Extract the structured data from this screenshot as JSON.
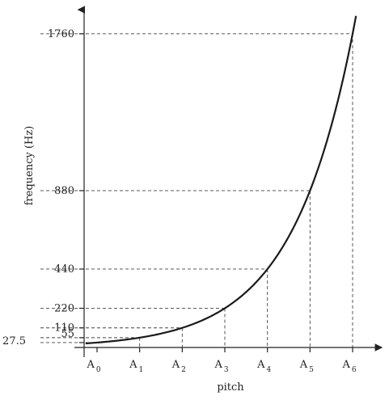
{
  "chart_data": {
    "type": "line",
    "xlabel": "pitch",
    "ylabel": "frequency (Hz)",
    "x_ticks": [
      {
        "letter": "A",
        "sub": "0",
        "index": 0
      },
      {
        "letter": "A",
        "sub": "1",
        "index": 1
      },
      {
        "letter": "A",
        "sub": "2",
        "index": 2
      },
      {
        "letter": "A",
        "sub": "3",
        "index": 3
      },
      {
        "letter": "A",
        "sub": "4",
        "index": 4
      },
      {
        "letter": "A",
        "sub": "5",
        "index": 5
      },
      {
        "letter": "A",
        "sub": "6",
        "index": 6
      }
    ],
    "y_ticks": [
      "27.5",
      "55",
      "110",
      "220",
      "440",
      "880",
      "1760"
    ],
    "series": [
      {
        "x": [
          0,
          1,
          2,
          3,
          4,
          5,
          6
        ],
        "values": [
          27.5,
          55,
          110,
          220,
          440,
          880,
          1760
        ]
      }
    ],
    "xlim": [
      -0.27,
      6.27
    ],
    "ylim": [
      0,
      1850
    ],
    "grid": false,
    "dashed_guides": true,
    "colors": {
      "curve": "#1a1a1a",
      "axis": "#222222",
      "guide": "#444444"
    }
  }
}
